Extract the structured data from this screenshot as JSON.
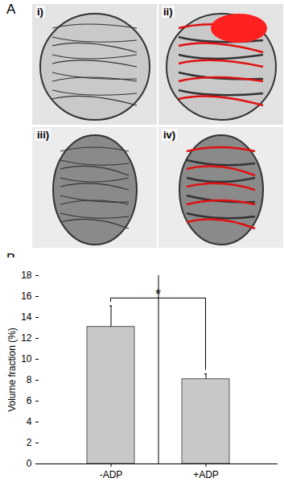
{
  "panel_labels": [
    "A",
    "B"
  ],
  "image_labels": [
    "i)",
    "ii)",
    "iii)",
    "iv)"
  ],
  "chart_data": {
    "type": "bar",
    "ylabel": "Volume fraction (%)",
    "categories": [
      "-ADP",
      "+ADP"
    ],
    "values": [
      13.1,
      8.1
    ],
    "errors": [
      2.0,
      0.5
    ],
    "color": "#c8c8c8",
    "ylim": [
      0,
      18
    ],
    "yticks": [
      0,
      2,
      4,
      6,
      8,
      10,
      12,
      14,
      16,
      18
    ],
    "grid": false,
    "annotation": "*"
  }
}
